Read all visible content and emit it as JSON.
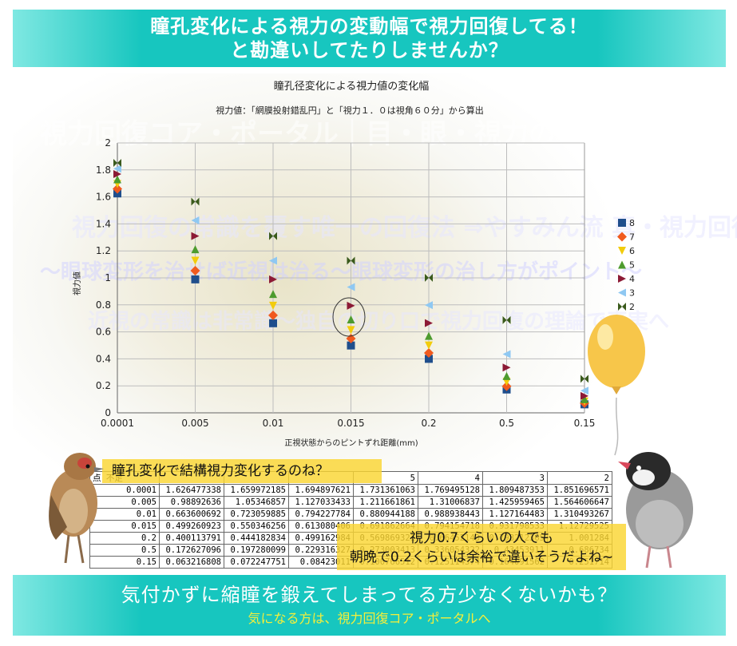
{
  "header": {
    "line1": "瞳孔変化による視力の変動幅で視力回復してる！",
    "line2": "と勘違いしてたりしませんか？"
  },
  "footer": {
    "line1": "気付かずに縮瞳を鍛えてしまってる方少なくないかも？",
    "line2": "気になる方は、視力回復コア・ポータルへ"
  },
  "watermark": {
    "line1": "視力回復コア・ポータル｜目・眼・視力の常識を覆す",
    "line2": "視力回復の常識を覆す唯一の回復法 ⇒やすみん流 真・視力回復",
    "line3": "～眼球変形を治せば近視は治る～眼球変形の治し方がポイント～",
    "line4": "近視の常識は非常識～独自の切り口で視力回復の理論で真実へ"
  },
  "callouts": {
    "c1": "瞳孔変化で結構視力変化するのね？",
    "c2a": "視力0.7くらいの人でも",
    "c2b": "朝晩で0.2くらいは余裕で違いそうだよね~"
  },
  "table": {
    "corner": "点 不足",
    "headers": [
      "",
      "",
      "",
      "5",
      "4",
      "3",
      "2"
    ],
    "rows": [
      [
        "0.0001",
        "1.626477338",
        "1.659972185",
        "1.694897621",
        "1.731361063",
        "1.769495128",
        "1.809487353",
        "1.851696571"
      ],
      [
        "0.005",
        "0.98892636",
        "1.05346857",
        "1.127033433",
        "1.211661861",
        "1.31006837",
        "1.425959465",
        "1.564606647"
      ],
      [
        "0.01",
        "0.663600692",
        "0.723059885",
        "0.794227784",
        "0.880944188",
        "0.988938443",
        "1.127164483",
        "1.310493267"
      ],
      [
        "0.015",
        "0.499260923",
        "0.550346256",
        "0.613080406",
        "0.691862664",
        "0.794154718",
        "0.931798533",
        "1.12729525"
      ],
      [
        "0.2",
        "0.400113791",
        "0.444182834",
        "0.499162984",
        "0.569869321",
        "0.66452143",
        "0.798212365",
        "1.001284"
      ],
      [
        "0.5",
        "0.172627096",
        "0.197280099",
        "0.229316327",
        "0.273003413",
        "0.336054322",
        "0.43453911",
        "0.686734"
      ],
      [
        "0.15",
        "0.063216808",
        "0.072247751",
        "0.08423011",
        "0.100766512",
        "0.125114374",
        "0.164091562",
        "0.251714"
      ]
    ]
  },
  "chart_data": {
    "type": "scatter",
    "title": "瞳孔径変化による視力値の変化幅",
    "subtitle": "視力値：「網膜投射錯乱円」と「視力１．０は視角６０分」から算出",
    "xlabel": "正視状態からのピントずれ距離(mm)",
    "ylabel": "視力値",
    "categories": [
      "0.0001",
      "0.005",
      "0.01",
      "0.015",
      "0.2",
      "0.5",
      "0.15"
    ],
    "yticks": [
      "0",
      "0.2",
      "0.4",
      "0.6",
      "0.8",
      "1",
      "1.2",
      "1.4",
      "1.6",
      "1.8",
      "2"
    ],
    "ylim": [
      0,
      2
    ],
    "grid": true,
    "legend_position": "right",
    "series": [
      {
        "name": "8",
        "color": "#1f4e8c",
        "marker": "square",
        "values": [
          1.626,
          0.989,
          0.664,
          0.499,
          0.4,
          0.173,
          0.063
        ]
      },
      {
        "name": "7",
        "color": "#f05a1e",
        "marker": "diamond",
        "values": [
          1.66,
          1.053,
          0.723,
          0.55,
          0.444,
          0.197,
          0.072
        ]
      },
      {
        "name": "6",
        "color": "#f2cc0c",
        "marker": "tri-down",
        "values": [
          1.695,
          1.127,
          0.794,
          0.613,
          0.499,
          0.229,
          0.084
        ]
      },
      {
        "name": "5",
        "color": "#4d9b2e",
        "marker": "tri-up",
        "values": [
          1.731,
          1.212,
          0.881,
          0.692,
          0.57,
          0.273,
          0.101
        ]
      },
      {
        "name": "4",
        "color": "#8c1a35",
        "marker": "tri-right",
        "values": [
          1.769,
          1.31,
          0.989,
          0.794,
          0.665,
          0.336,
          0.125
        ]
      },
      {
        "name": "3",
        "color": "#8fc8f2",
        "marker": "tri-left",
        "values": [
          1.809,
          1.426,
          1.127,
          0.932,
          0.798,
          0.435,
          0.164
        ]
      },
      {
        "name": "2",
        "color": "#3a5a1c",
        "marker": "bowtie",
        "values": [
          1.852,
          1.565,
          1.31,
          1.127,
          1.001,
          0.687,
          0.252
        ]
      }
    ],
    "highlight_category": "0.015"
  }
}
